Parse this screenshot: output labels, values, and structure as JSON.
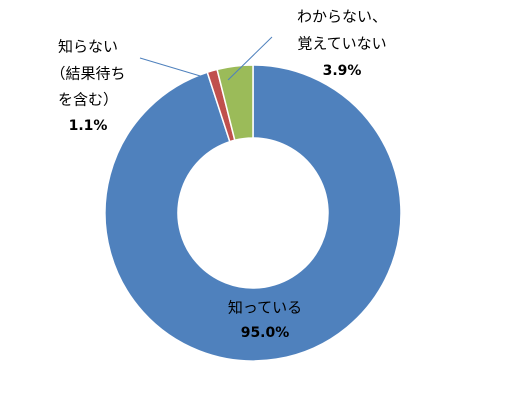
{
  "chart_data": {
    "type": "donut",
    "categories": [
      [
        "知っている"
      ],
      [
        "知らない",
        "（結果待ち",
        "を含む）"
      ],
      [
        "わからない、",
        "覚えていない"
      ]
    ],
    "values": [
      95.0,
      1.1,
      3.9
    ],
    "value_labels": [
      "95.0%",
      "1.1%",
      "3.9%"
    ],
    "colors": [
      "#4f81bd",
      "#c0504d",
      "#9bbb59"
    ]
  }
}
